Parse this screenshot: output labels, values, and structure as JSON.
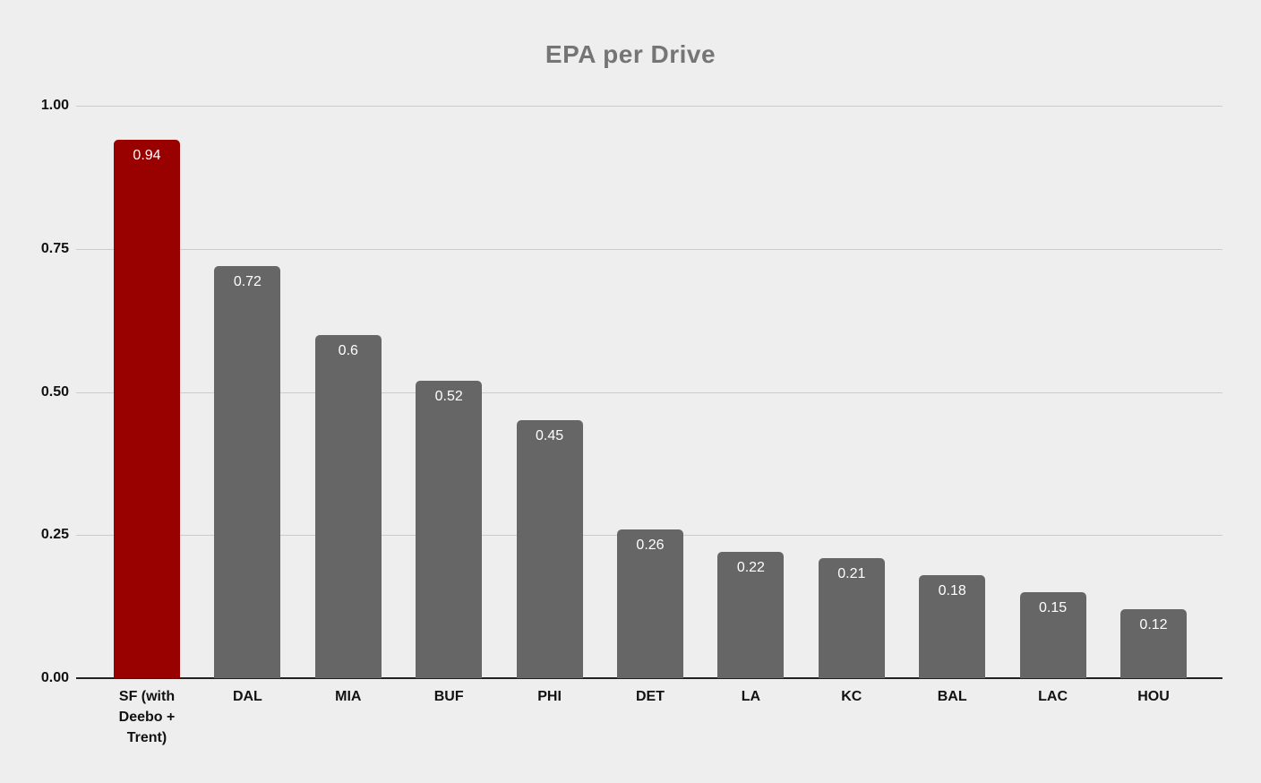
{
  "chart_data": {
    "type": "bar",
    "title": "EPA per Drive",
    "categories": [
      "SF (with Deebo + Trent)",
      "DAL",
      "MIA",
      "BUF",
      "PHI",
      "DET",
      "LA",
      "KC",
      "BAL",
      "LAC",
      "HOU"
    ],
    "category_display": [
      "SF (with\nDeebo +\nTrent)",
      "DAL",
      "MIA",
      "BUF",
      "PHI",
      "DET",
      "LA",
      "KC",
      "BAL",
      "LAC",
      "HOU"
    ],
    "values": [
      0.94,
      0.72,
      0.6,
      0.52,
      0.45,
      0.26,
      0.22,
      0.21,
      0.18,
      0.15,
      0.12
    ],
    "value_labels": [
      "0.94",
      "0.72",
      "0.6",
      "0.52",
      "0.45",
      "0.26",
      "0.22",
      "0.21",
      "0.18",
      "0.15",
      "0.12"
    ],
    "xlabel": "",
    "ylabel": "",
    "ylim": [
      0,
      1.0
    ],
    "yticks": [
      {
        "value": 0.0,
        "label": "0.00"
      },
      {
        "value": 0.25,
        "label": "0.25"
      },
      {
        "value": 0.5,
        "label": "0.50"
      },
      {
        "value": 0.75,
        "label": "0.75"
      },
      {
        "value": 1.0,
        "label": "1.00"
      }
    ],
    "grid": "horizontal",
    "legend": "none",
    "colors": {
      "highlight_index": 0,
      "highlight_bar": "#990000",
      "default_bar": "#666666",
      "background": "#eeeeee",
      "gridline": "#cbcbcb",
      "axis_line": "#212121",
      "title_text": "#757575",
      "tick_text": "#111111",
      "value_label_text": "#ffffff"
    }
  }
}
